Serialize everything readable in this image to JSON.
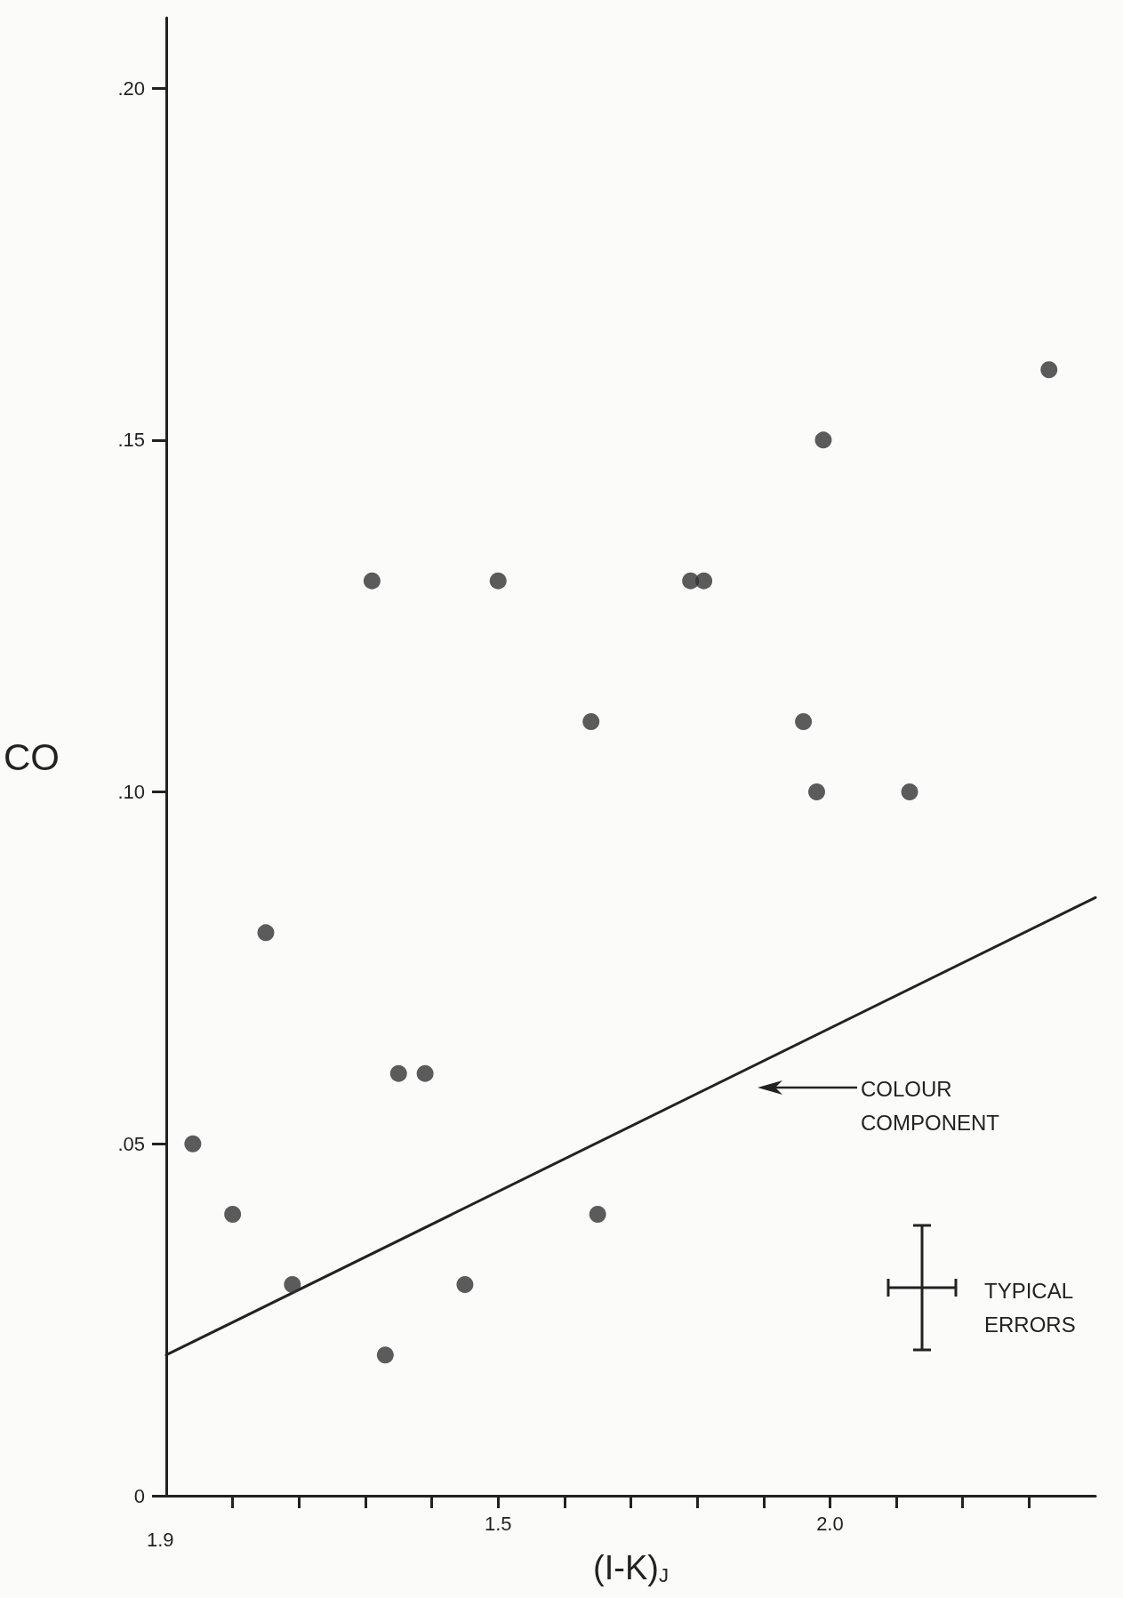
{
  "chart_data": {
    "type": "scatter",
    "xlabel": "(I-K)$_{J}$",
    "ylabel": "CO",
    "xlim": [
      1.0,
      2.4
    ],
    "ylim": [
      0,
      0.21
    ],
    "xticks": [
      {
        "value": 1.1,
        "label": null
      },
      {
        "value": 1.2,
        "label": null
      },
      {
        "value": 1.3,
        "label": null
      },
      {
        "value": 1.4,
        "label": null
      },
      1.5,
      {
        "value": 1.6,
        "label": null
      },
      {
        "value": 1.7,
        "label": null
      },
      {
        "value": 1.8,
        "label": null
      },
      {
        "value": 1.9,
        "label": null
      },
      {
        "value": 2.0,
        "label": "2.0"
      },
      {
        "value": 2.1,
        "label": null
      },
      {
        "value": 2.2,
        "label": null
      },
      {
        "value": 2.3,
        "label": null
      }
    ],
    "yticks": [
      0,
      {
        "value": 0.05,
        "label": ".05"
      },
      {
        "value": 0.1,
        "label": ".10"
      },
      {
        "value": 0.15,
        "label": ".15"
      },
      {
        "value": 0.2,
        "label": ".20"
      }
    ],
    "grid": false,
    "marker": "circle",
    "series": [
      {
        "color": "#333333",
        "x": [
          1.04,
          1.1,
          1.15,
          1.19,
          1.31,
          1.35,
          1.39,
          1.33,
          1.45,
          1.5,
          1.64,
          1.65,
          1.79,
          1.81,
          1.96,
          1.99,
          1.98,
          2.12,
          2.33
        ],
        "values": [
          0.05,
          0.04,
          0.08,
          0.03,
          0.13,
          0.06,
          0.06,
          0.02,
          0.03,
          0.13,
          0.11,
          0.04,
          0.13,
          0.13,
          0.11,
          0.15,
          0.1,
          0.1,
          0.16
        ]
      },
      {
        "type": "line",
        "color": "#222222",
        "marker": "none",
        "line_style": "solid",
        "x": [
          1.0,
          2.4
        ],
        "values": [
          0.02,
          0.085
        ]
      }
    ],
    "annotations": [
      "COLOUR COMPONENT",
      "TYPICAL ERRORS",
      "1.9"
    ]
  }
}
